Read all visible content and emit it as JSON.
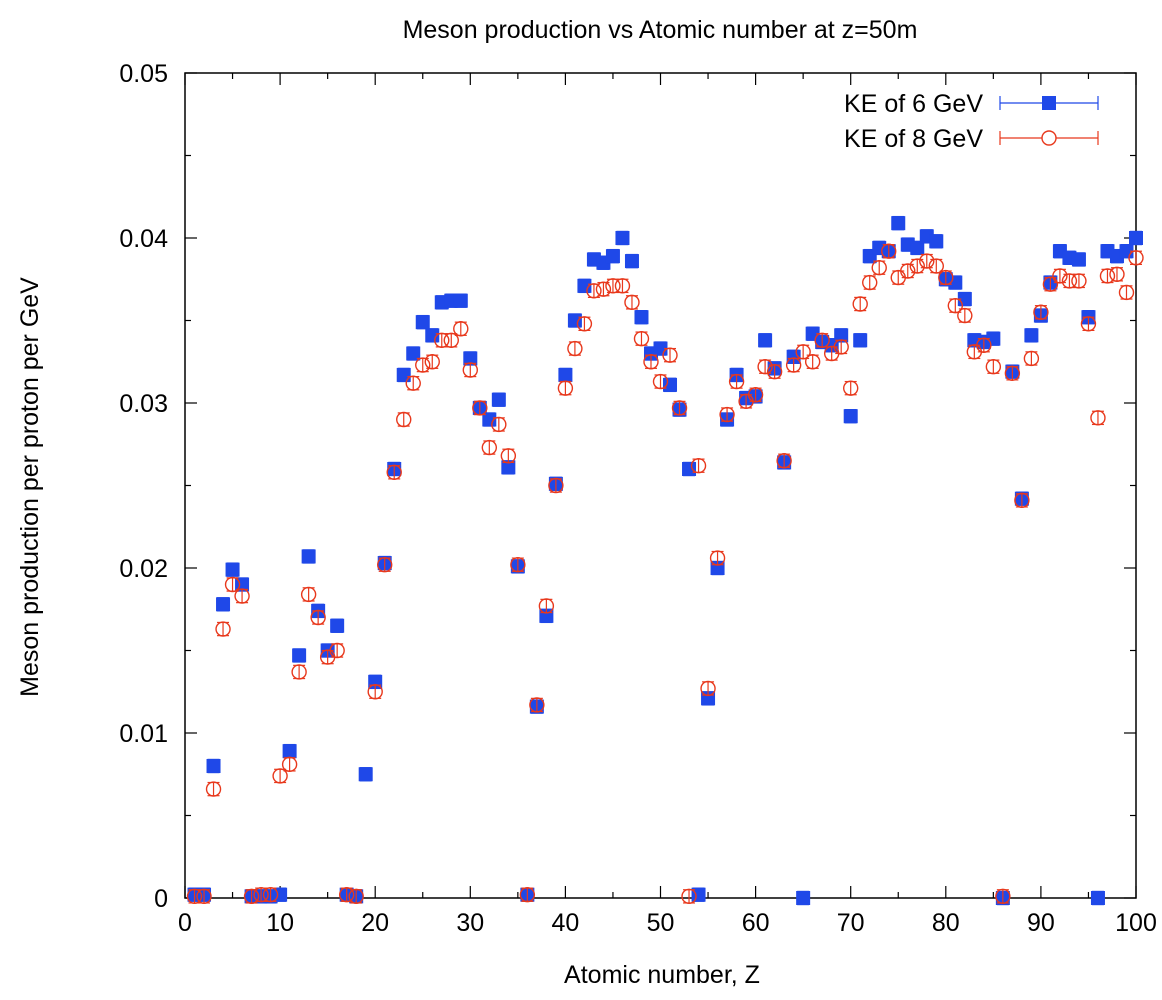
{
  "chart_data": {
    "type": "scatter",
    "title": "Meson production vs Atomic number at z=50m",
    "xlabel": "Atomic number, Z",
    "ylabel": "Meson production per proton per GeV",
    "xlim": [
      0,
      100
    ],
    "ylim": [
      0,
      0.05
    ],
    "xticks": [
      0,
      10,
      20,
      30,
      40,
      50,
      60,
      70,
      80,
      90,
      100
    ],
    "yticks": [
      0,
      0.01,
      0.02,
      0.03,
      0.04,
      0.05
    ],
    "ytick_labels": [
      "0",
      "0.01",
      "0.02",
      "0.03",
      "0.04",
      "0.05"
    ],
    "grid": false,
    "legend_position": "top-right",
    "series": [
      {
        "name": "KE of 6 GeV",
        "color": "#1f48e8",
        "marker": "filled-square",
        "error": 0.0004,
        "x": [
          1,
          2,
          3,
          4,
          5,
          6,
          7,
          8,
          9,
          10,
          11,
          12,
          13,
          14,
          15,
          16,
          17,
          18,
          19,
          20,
          21,
          22,
          23,
          24,
          25,
          26,
          27,
          28,
          29,
          30,
          31,
          32,
          33,
          34,
          35,
          36,
          37,
          38,
          39,
          40,
          41,
          42,
          43,
          44,
          45,
          46,
          47,
          48,
          49,
          50,
          51,
          52,
          53,
          54,
          55,
          56,
          57,
          58,
          59,
          60,
          61,
          62,
          63,
          64,
          65,
          66,
          67,
          68,
          69,
          70,
          71,
          72,
          73,
          74,
          75,
          76,
          77,
          78,
          79,
          80,
          81,
          82,
          83,
          84,
          85,
          86,
          87,
          88,
          89,
          90,
          91,
          92,
          93,
          94,
          95,
          96,
          97,
          98,
          99,
          100
        ],
        "y": [
          0.0002,
          0.0002,
          0.008,
          0.0178,
          0.0199,
          0.019,
          0.0001,
          0.0001,
          0.0001,
          0.0002,
          0.0089,
          0.0147,
          0.0207,
          0.0174,
          0.015,
          0.0165,
          0.0002,
          0.0001,
          0.0075,
          0.0131,
          0.0203,
          0.026,
          0.0317,
          0.033,
          0.0349,
          0.0341,
          0.0361,
          0.0362,
          0.0362,
          0.0327,
          0.0297,
          0.029,
          0.0302,
          0.0261,
          0.0201,
          0.0002,
          0.0116,
          0.0171,
          0.0251,
          0.0317,
          0.035,
          0.0371,
          0.0387,
          0.0385,
          0.0389,
          0.04,
          0.0386,
          0.0352,
          0.033,
          0.0333,
          0.0311,
          0.0296,
          0.026,
          0.0002,
          0.0121,
          0.02,
          0.029,
          0.0317,
          0.0303,
          0.0304,
          0.0338,
          0.0321,
          0.0264,
          0.0328,
          0.0,
          0.0342,
          0.0337,
          0.0335,
          0.0341,
          0.0292,
          0.0338,
          0.0389,
          0.0394,
          0.0392,
          0.0409,
          0.0396,
          0.0394,
          0.0401,
          0.0398,
          0.0375,
          0.0373,
          0.0363,
          0.0338,
          0.0337,
          0.0339,
          0.0,
          0.0319,
          0.0242,
          0.0341,
          0.0353,
          0.0373,
          0.0392,
          0.0388,
          0.0387,
          0.0352,
          0.0,
          0.0392,
          0.0389,
          0.0392,
          0.04
        ]
      },
      {
        "name": "KE of 8 GeV",
        "color": "#e8381c",
        "marker": "open-circle",
        "error": 0.0004,
        "x": [
          1,
          2,
          3,
          4,
          5,
          6,
          7,
          8,
          9,
          10,
          11,
          12,
          13,
          14,
          15,
          16,
          17,
          18,
          20,
          21,
          22,
          23,
          24,
          25,
          26,
          27,
          28,
          29,
          30,
          31,
          32,
          33,
          34,
          35,
          36,
          37,
          38,
          39,
          40,
          41,
          42,
          43,
          44,
          45,
          46,
          47,
          48,
          49,
          50,
          51,
          52,
          53,
          54,
          55,
          56,
          57,
          58,
          59,
          60,
          61,
          62,
          63,
          64,
          65,
          66,
          67,
          68,
          69,
          70,
          71,
          72,
          73,
          74,
          75,
          76,
          77,
          78,
          79,
          80,
          81,
          82,
          83,
          84,
          85,
          86,
          87,
          88,
          89,
          90,
          91,
          92,
          93,
          94,
          95,
          96,
          97,
          98,
          99,
          100
        ],
        "y": [
          0.0001,
          0.0001,
          0.0066,
          0.0163,
          0.019,
          0.0183,
          0.0001,
          0.0002,
          0.0002,
          0.0074,
          0.0081,
          0.0137,
          0.0184,
          0.017,
          0.0146,
          0.015,
          0.0002,
          0.0001,
          0.0125,
          0.0202,
          0.0258,
          0.029,
          0.0312,
          0.0323,
          0.0325,
          0.0338,
          0.0338,
          0.0345,
          0.032,
          0.0297,
          0.0273,
          0.0287,
          0.0268,
          0.0202,
          0.0002,
          0.0117,
          0.0177,
          0.025,
          0.0309,
          0.0333,
          0.0348,
          0.0368,
          0.0369,
          0.0371,
          0.0371,
          0.0361,
          0.0339,
          0.0325,
          0.0313,
          0.0329,
          0.0297,
          0.0001,
          0.0262,
          0.0127,
          0.0206,
          0.0293,
          0.0313,
          0.0301,
          0.0305,
          0.0322,
          0.0319,
          0.0265,
          0.0323,
          0.0331,
          0.0325,
          0.0338,
          0.033,
          0.0334,
          0.0309,
          0.036,
          0.0373,
          0.0382,
          0.0392,
          0.0376,
          0.038,
          0.0383,
          0.0386,
          0.0383,
          0.0376,
          0.0359,
          0.0353,
          0.0331,
          0.0335,
          0.0322,
          0.0001,
          0.0318,
          0.0241,
          0.0327,
          0.0355,
          0.0372,
          0.0377,
          0.0374,
          0.0374,
          0.0348,
          0.0291,
          0.0377,
          0.0378,
          0.0367,
          0.0388
        ]
      }
    ]
  }
}
